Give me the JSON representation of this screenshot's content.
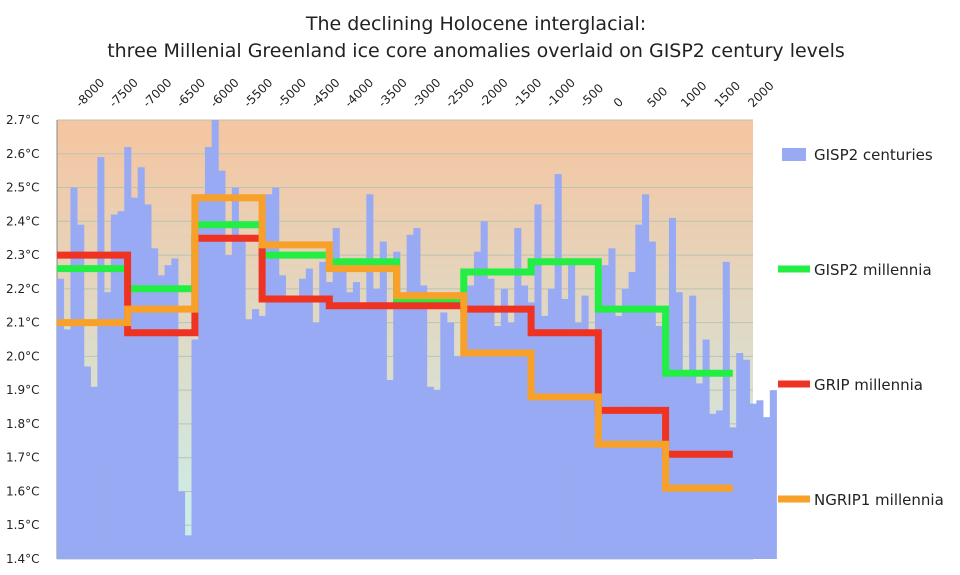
{
  "chart_data": {
    "type": "bar+line",
    "title": [
      "The declining Holocene interglacial:",
      "three Millenial Greenland ice core anomalies overlaid on GISP2 century levels"
    ],
    "xlabel": "",
    "ylabel": "",
    "xlim": [
      -8350,
      2000
    ],
    "ylim": [
      1.4,
      2.7
    ],
    "x_ticks": [
      -8000,
      -7500,
      -7000,
      -6500,
      -6000,
      -5500,
      -5000,
      -4500,
      -4000,
      -3500,
      -3000,
      -2500,
      -2000,
      -1500,
      -1000,
      -500,
      0,
      500,
      1000,
      1500,
      2000
    ],
    "y_ticks": [
      {
        "value": 1.4,
        "label": "1.4°C"
      },
      {
        "value": 1.5,
        "label": "1.5°C"
      },
      {
        "value": 1.6,
        "label": "1.6°C"
      },
      {
        "value": 1.7,
        "label": "1.7°C"
      },
      {
        "value": 1.8,
        "label": "1.8°C"
      },
      {
        "value": 1.9,
        "label": "1.9°C"
      },
      {
        "value": 2.0,
        "label": "2.0°C"
      },
      {
        "value": 2.1,
        "label": "2.1°C"
      },
      {
        "value": 2.2,
        "label": "2.2°C"
      },
      {
        "value": 2.3,
        "label": "2.3°C"
      },
      {
        "value": 2.4,
        "label": "2.4°C"
      },
      {
        "value": 2.5,
        "label": "2.5°C"
      },
      {
        "value": 2.6,
        "label": "2.6°C"
      },
      {
        "value": 2.7,
        "label": "2.7°C"
      }
    ],
    "background": {
      "top": "#f5c5a0",
      "bottom": "#c8f0ee"
    },
    "bars": {
      "name": "GISP2 centuries",
      "color": "#99aaf4",
      "start": -8350,
      "step": 100,
      "values": [
        2.23,
        2.08,
        2.5,
        2.39,
        1.97,
        1.91,
        2.59,
        2.19,
        2.42,
        2.43,
        2.62,
        2.47,
        2.56,
        2.45,
        2.32,
        2.24,
        2.27,
        2.29,
        1.6,
        1.47,
        2.05,
        2.48,
        2.62,
        2.7,
        2.55,
        2.3,
        2.5,
        2.36,
        2.11,
        2.14,
        2.12,
        2.48,
        2.5,
        2.24,
        2.18,
        2.17,
        2.23,
        2.26,
        2.1,
        2.28,
        2.22,
        2.38,
        2.27,
        2.19,
        2.22,
        2.14,
        2.48,
        2.2,
        2.34,
        1.93,
        2.31,
        2.17,
        2.36,
        2.38,
        2.21,
        1.91,
        1.9,
        2.13,
        2.1,
        2.0,
        2.15,
        2.21,
        2.31,
        2.4,
        2.23,
        2.09,
        2.2,
        2.1,
        2.38,
        2.21,
        2.16,
        2.45,
        2.12,
        2.2,
        2.54,
        2.17,
        2.29,
        2.1,
        2.18,
        2.06,
        2.25,
        2.27,
        2.32,
        2.12,
        2.2,
        2.25,
        2.39,
        2.48,
        2.34,
        2.09,
        2.04,
        2.41,
        2.19,
        1.94,
        2.18,
        1.92,
        2.05,
        1.83,
        1.84,
        2.28,
        1.79,
        2.01,
        1.99,
        1.86,
        1.87,
        1.82,
        1.9
      ]
    },
    "series": [
      {
        "name": "GISP2 millennia",
        "color": "#22ee44",
        "steps": [
          {
            "x0": -8350,
            "x1": -7300,
            "y": 2.26
          },
          {
            "x0": -7300,
            "x1": -6300,
            "y": 2.2
          },
          {
            "x0": -6300,
            "x1": -5300,
            "y": 2.39
          },
          {
            "x0": -5300,
            "x1": -4300,
            "y": 2.3
          },
          {
            "x0": -4300,
            "x1": -3300,
            "y": 2.28
          },
          {
            "x0": -3300,
            "x1": -2300,
            "y": 2.17
          },
          {
            "x0": -2300,
            "x1": -1300,
            "y": 2.25
          },
          {
            "x0": -1300,
            "x1": -300,
            "y": 2.28
          },
          {
            "x0": -300,
            "x1": 700,
            "y": 2.14
          },
          {
            "x0": 700,
            "x1": 1700,
            "y": 1.95
          }
        ]
      },
      {
        "name": "GRIP millennia",
        "color": "#ee3322",
        "steps": [
          {
            "x0": -8350,
            "x1": -7300,
            "y": 2.3
          },
          {
            "x0": -7300,
            "x1": -6300,
            "y": 2.07
          },
          {
            "x0": -6300,
            "x1": -5300,
            "y": 2.35
          },
          {
            "x0": -5300,
            "x1": -4300,
            "y": 2.17
          },
          {
            "x0": -4300,
            "x1": -3300,
            "y": 2.15
          },
          {
            "x0": -3300,
            "x1": -2300,
            "y": 2.15
          },
          {
            "x0": -2300,
            "x1": -1300,
            "y": 2.14
          },
          {
            "x0": -1300,
            "x1": -300,
            "y": 2.07
          },
          {
            "x0": -300,
            "x1": 700,
            "y": 1.84
          },
          {
            "x0": 700,
            "x1": 1700,
            "y": 1.71
          }
        ]
      },
      {
        "name": "NGRIP1 millennia",
        "color": "#f7a02a",
        "steps": [
          {
            "x0": -8350,
            "x1": -7300,
            "y": 2.1
          },
          {
            "x0": -7300,
            "x1": -6300,
            "y": 2.14
          },
          {
            "x0": -6300,
            "x1": -5300,
            "y": 2.47
          },
          {
            "x0": -5300,
            "x1": -4300,
            "y": 2.33
          },
          {
            "x0": -4300,
            "x1": -3300,
            "y": 2.26
          },
          {
            "x0": -3300,
            "x1": -2300,
            "y": 2.18
          },
          {
            "x0": -2300,
            "x1": -1300,
            "y": 2.01
          },
          {
            "x0": -1300,
            "x1": -300,
            "y": 1.88
          },
          {
            "x0": -300,
            "x1": 700,
            "y": 1.74
          },
          {
            "x0": 700,
            "x1": 1700,
            "y": 1.61
          }
        ]
      }
    ],
    "legend": [
      {
        "label": "GISP2 centuries",
        "color": "#99aaf4",
        "kind": "box"
      },
      {
        "label": "GISP2 millennia",
        "color": "#22ee44",
        "kind": "line"
      },
      {
        "label": "GRIP millennia",
        "color": "#ee3322",
        "kind": "line"
      },
      {
        "label": "NGRIP1 millennia",
        "color": "#f7a02a",
        "kind": "line"
      }
    ],
    "legend_position": "right"
  }
}
